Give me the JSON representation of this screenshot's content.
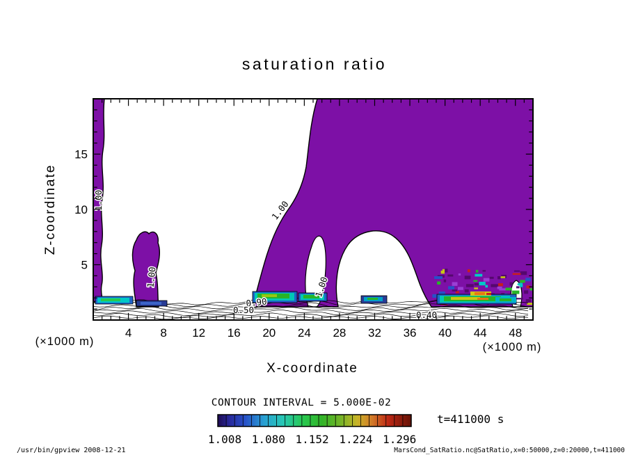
{
  "chart_data": {
    "type": "contour",
    "title": "saturation ratio",
    "xlabel": "X-coordinate",
    "ylabel": "Z-coordinate",
    "x_unit_label": "(×1000 m)",
    "y_unit_label": "(×1000 m)",
    "x_range": [
      0,
      50
    ],
    "z_range": [
      0,
      20
    ],
    "x_ticks": [
      4,
      8,
      12,
      16,
      20,
      24,
      28,
      32,
      36,
      40,
      44,
      48
    ],
    "y_ticks": [
      5,
      10,
      15
    ],
    "contour_interval_label": "CONTOUR INTERVAL = 5.000E-02",
    "contour_interval": 0.05,
    "time_label": "t=411000 s",
    "colorbar_labels": [
      "1.008",
      "1.080",
      "1.152",
      "1.224",
      "1.296"
    ],
    "contour_line_labels": [
      "1.00",
      "1.00",
      "1.00",
      "1.00",
      "0.90",
      "0.50",
      "0.40"
    ],
    "colors": {
      "fill_region": "#7d10a6",
      "background": "#ffffff",
      "line": "#000000"
    }
  },
  "footer": {
    "left": "/usr/bin/gpview  2008-12-21",
    "right": "MarsCond_SatRatio.nc@SatRatio,x=0:50000,z=0:20000,t=411000"
  }
}
